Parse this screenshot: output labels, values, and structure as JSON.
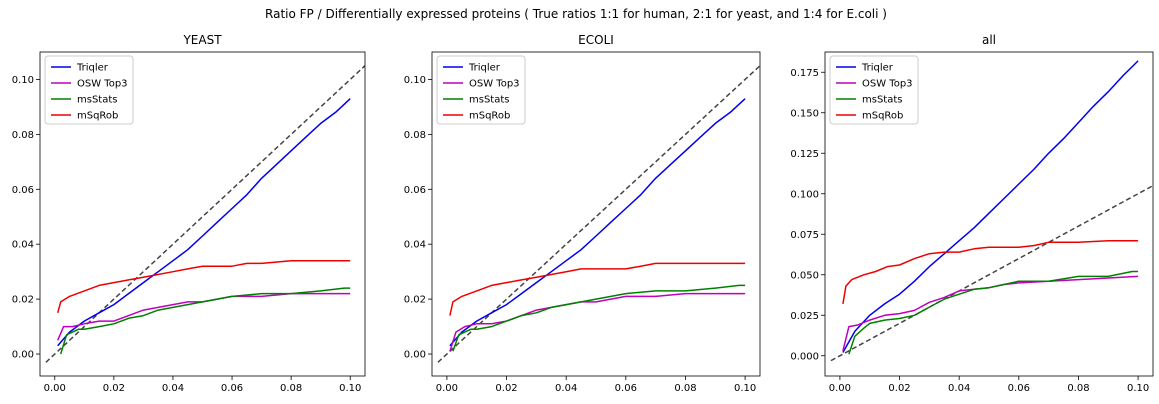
{
  "suptitle": "Ratio FP / Differentially expressed proteins ( True ratios 1:1 for human, 2:1 for yeast, and 1:4 for E.coli )",
  "chart_data": [
    {
      "type": "line",
      "title": "YEAST",
      "xlim": [
        -0.005,
        0.105
      ],
      "ylim": [
        -0.008,
        0.11
      ],
      "xticks": [
        0.0,
        0.02,
        0.04,
        0.06,
        0.08,
        0.1
      ],
      "xtick_labels": [
        "0.00",
        "0.02",
        "0.04",
        "0.06",
        "0.08",
        "0.10"
      ],
      "yticks": [
        0.0,
        0.02,
        0.04,
        0.06,
        0.08,
        0.1
      ],
      "ytick_labels": [
        "0.00",
        "0.02",
        "0.04",
        "0.06",
        "0.08",
        "0.10"
      ],
      "legend": "upper-left",
      "reference_line": {
        "x": [
          -0.003,
          0.105
        ],
        "y": [
          -0.003,
          0.105
        ],
        "color": "#444444",
        "style": "dashed"
      },
      "series": [
        {
          "name": "Triqler",
          "color": "#0000ee",
          "x": [
            0.001,
            0.005,
            0.01,
            0.015,
            0.02,
            0.025,
            0.03,
            0.035,
            0.04,
            0.045,
            0.05,
            0.055,
            0.06,
            0.065,
            0.07,
            0.075,
            0.08,
            0.085,
            0.09,
            0.095,
            0.1
          ],
          "y": [
            0.003,
            0.008,
            0.012,
            0.015,
            0.018,
            0.022,
            0.026,
            0.03,
            0.034,
            0.038,
            0.043,
            0.048,
            0.053,
            0.058,
            0.064,
            0.069,
            0.074,
            0.079,
            0.084,
            0.088,
            0.093
          ]
        },
        {
          "name": "OSW Top3",
          "color": "#bf00bf",
          "x": [
            0.001,
            0.003,
            0.006,
            0.01,
            0.015,
            0.02,
            0.025,
            0.03,
            0.035,
            0.04,
            0.045,
            0.05,
            0.055,
            0.06,
            0.07,
            0.08,
            0.09,
            0.1
          ],
          "y": [
            0.005,
            0.01,
            0.01,
            0.011,
            0.012,
            0.012,
            0.014,
            0.016,
            0.017,
            0.018,
            0.019,
            0.019,
            0.02,
            0.021,
            0.021,
            0.022,
            0.022,
            0.022
          ]
        },
        {
          "name": "msStats",
          "color": "#008000",
          "x": [
            0.002,
            0.004,
            0.006,
            0.008,
            0.01,
            0.015,
            0.02,
            0.025,
            0.03,
            0.035,
            0.04,
            0.05,
            0.06,
            0.07,
            0.08,
            0.09,
            0.098,
            0.1
          ],
          "y": [
            0.0,
            0.007,
            0.008,
            0.009,
            0.009,
            0.01,
            0.011,
            0.013,
            0.014,
            0.016,
            0.017,
            0.019,
            0.021,
            0.022,
            0.022,
            0.023,
            0.024,
            0.024
          ]
        },
        {
          "name": "mSqRob",
          "color": "#ee0000",
          "x": [
            0.001,
            0.002,
            0.005,
            0.01,
            0.015,
            0.02,
            0.025,
            0.03,
            0.04,
            0.045,
            0.05,
            0.06,
            0.065,
            0.07,
            0.08,
            0.09,
            0.1
          ],
          "y": [
            0.015,
            0.019,
            0.021,
            0.023,
            0.025,
            0.026,
            0.027,
            0.028,
            0.03,
            0.031,
            0.032,
            0.032,
            0.033,
            0.033,
            0.034,
            0.034,
            0.034
          ]
        }
      ]
    },
    {
      "type": "line",
      "title": "ECOLI",
      "xlim": [
        -0.005,
        0.105
      ],
      "ylim": [
        -0.008,
        0.11
      ],
      "xticks": [
        0.0,
        0.02,
        0.04,
        0.06,
        0.08,
        0.1
      ],
      "xtick_labels": [
        "0.00",
        "0.02",
        "0.04",
        "0.06",
        "0.08",
        "0.10"
      ],
      "yticks": [
        0.0,
        0.02,
        0.04,
        0.06,
        0.08,
        0.1
      ],
      "ytick_labels": [
        "0.00",
        "0.02",
        "0.04",
        "0.06",
        "0.08",
        "0.10"
      ],
      "legend": "upper-left",
      "reference_line": {
        "x": [
          -0.003,
          0.105
        ],
        "y": [
          -0.003,
          0.105
        ],
        "color": "#444444",
        "style": "dashed"
      },
      "series": [
        {
          "name": "Triqler",
          "color": "#0000ee",
          "x": [
            0.001,
            0.005,
            0.01,
            0.015,
            0.02,
            0.025,
            0.03,
            0.035,
            0.04,
            0.045,
            0.05,
            0.055,
            0.06,
            0.065,
            0.07,
            0.075,
            0.08,
            0.085,
            0.09,
            0.095,
            0.1
          ],
          "y": [
            0.003,
            0.008,
            0.012,
            0.015,
            0.018,
            0.022,
            0.026,
            0.03,
            0.034,
            0.038,
            0.043,
            0.048,
            0.053,
            0.058,
            0.064,
            0.069,
            0.074,
            0.079,
            0.084,
            0.088,
            0.093
          ]
        },
        {
          "name": "OSW Top3",
          "color": "#bf00bf",
          "x": [
            0.001,
            0.003,
            0.006,
            0.01,
            0.015,
            0.02,
            0.025,
            0.03,
            0.035,
            0.04,
            0.045,
            0.05,
            0.055,
            0.06,
            0.07,
            0.08,
            0.09,
            0.1
          ],
          "y": [
            0.001,
            0.008,
            0.01,
            0.011,
            0.011,
            0.012,
            0.014,
            0.016,
            0.017,
            0.018,
            0.019,
            0.019,
            0.02,
            0.021,
            0.021,
            0.022,
            0.022,
            0.022
          ]
        },
        {
          "name": "msStats",
          "color": "#008000",
          "x": [
            0.002,
            0.004,
            0.006,
            0.008,
            0.01,
            0.015,
            0.02,
            0.025,
            0.03,
            0.035,
            0.04,
            0.05,
            0.06,
            0.07,
            0.08,
            0.09,
            0.098,
            0.1
          ],
          "y": [
            0.001,
            0.007,
            0.008,
            0.009,
            0.009,
            0.01,
            0.012,
            0.014,
            0.015,
            0.017,
            0.018,
            0.02,
            0.022,
            0.023,
            0.023,
            0.024,
            0.025,
            0.025
          ]
        },
        {
          "name": "mSqRob",
          "color": "#ee0000",
          "x": [
            0.001,
            0.002,
            0.005,
            0.01,
            0.015,
            0.02,
            0.025,
            0.03,
            0.04,
            0.045,
            0.05,
            0.06,
            0.065,
            0.07,
            0.08,
            0.09,
            0.1
          ],
          "y": [
            0.014,
            0.019,
            0.021,
            0.023,
            0.025,
            0.026,
            0.027,
            0.028,
            0.03,
            0.031,
            0.031,
            0.031,
            0.032,
            0.033,
            0.033,
            0.033,
            0.033
          ]
        }
      ]
    },
    {
      "type": "line",
      "title": "all",
      "xlim": [
        -0.005,
        0.105
      ],
      "ylim": [
        -0.0125,
        0.1875
      ],
      "xticks": [
        0.0,
        0.02,
        0.04,
        0.06,
        0.08,
        0.1
      ],
      "xtick_labels": [
        "0.00",
        "0.02",
        "0.04",
        "0.06",
        "0.08",
        "0.10"
      ],
      "yticks": [
        0.0,
        0.025,
        0.05,
        0.075,
        0.1,
        0.125,
        0.15,
        0.175
      ],
      "ytick_labels": [
        "0.000",
        "0.025",
        "0.050",
        "0.075",
        "0.100",
        "0.125",
        "0.150",
        "0.175"
      ],
      "legend": "upper-left",
      "reference_line": {
        "x": [
          -0.003,
          0.105
        ],
        "y": [
          -0.003,
          0.105
        ],
        "color": "#444444",
        "style": "dashed"
      },
      "series": [
        {
          "name": "Triqler",
          "color": "#0000ee",
          "x": [
            0.001,
            0.005,
            0.01,
            0.015,
            0.02,
            0.025,
            0.03,
            0.035,
            0.04,
            0.045,
            0.05,
            0.055,
            0.06,
            0.065,
            0.07,
            0.075,
            0.08,
            0.085,
            0.09,
            0.095,
            0.1
          ],
          "y": [
            0.002,
            0.015,
            0.025,
            0.032,
            0.038,
            0.046,
            0.055,
            0.063,
            0.071,
            0.079,
            0.088,
            0.097,
            0.106,
            0.115,
            0.125,
            0.134,
            0.144,
            0.154,
            0.163,
            0.173,
            0.182
          ]
        },
        {
          "name": "OSW Top3",
          "color": "#bf00bf",
          "x": [
            0.001,
            0.003,
            0.006,
            0.01,
            0.015,
            0.02,
            0.025,
            0.03,
            0.035,
            0.04,
            0.045,
            0.05,
            0.055,
            0.06,
            0.07,
            0.08,
            0.09,
            0.1
          ],
          "y": [
            0.003,
            0.018,
            0.019,
            0.022,
            0.025,
            0.026,
            0.028,
            0.033,
            0.036,
            0.04,
            0.041,
            0.042,
            0.044,
            0.045,
            0.046,
            0.047,
            0.048,
            0.049
          ]
        },
        {
          "name": "msStats",
          "color": "#008000",
          "x": [
            0.003,
            0.005,
            0.008,
            0.01,
            0.015,
            0.02,
            0.025,
            0.03,
            0.035,
            0.04,
            0.045,
            0.05,
            0.055,
            0.06,
            0.07,
            0.08,
            0.09,
            0.098,
            0.1
          ],
          "y": [
            0.001,
            0.012,
            0.017,
            0.02,
            0.022,
            0.023,
            0.025,
            0.03,
            0.035,
            0.038,
            0.041,
            0.042,
            0.044,
            0.046,
            0.046,
            0.049,
            0.049,
            0.052,
            0.052
          ]
        },
        {
          "name": "mSqRob",
          "color": "#ee0000",
          "x": [
            0.001,
            0.002,
            0.004,
            0.008,
            0.012,
            0.016,
            0.02,
            0.025,
            0.03,
            0.035,
            0.04,
            0.045,
            0.05,
            0.055,
            0.06,
            0.065,
            0.07,
            0.08,
            0.09,
            0.1
          ],
          "y": [
            0.032,
            0.043,
            0.047,
            0.05,
            0.052,
            0.055,
            0.056,
            0.06,
            0.063,
            0.064,
            0.064,
            0.066,
            0.067,
            0.067,
            0.067,
            0.068,
            0.07,
            0.07,
            0.071,
            0.071
          ]
        }
      ]
    }
  ]
}
